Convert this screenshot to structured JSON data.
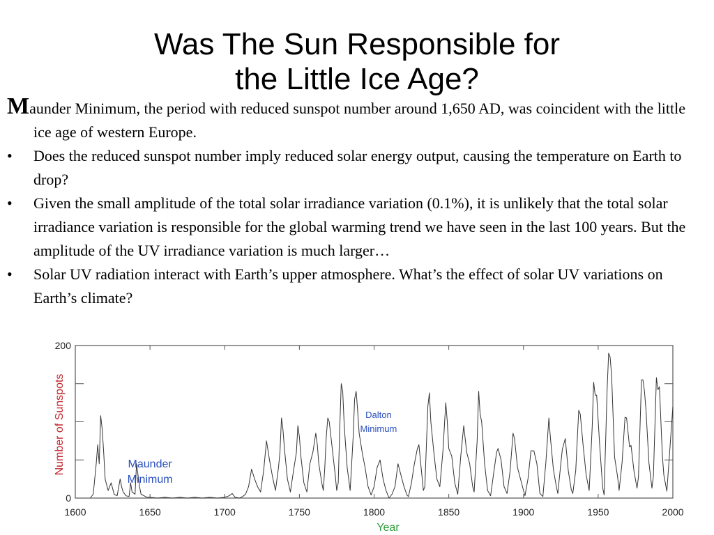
{
  "slide": {
    "title_line1": "Was The Sun Responsible for",
    "title_line2": "the Little Ice Age?",
    "intro_dropcap": "M",
    "intro_rest": "aunder Minimum, the period with reduced sunspot number around 1,650 AD, was coincident with the little ice age of western Europe.",
    "bullet_symbol": "•",
    "bullets": [
      "Does the reduced sunspot number imply reduced solar energy output, causing the temperature on Earth to drop?",
      "Given the small amplitude of the total solar irradiance variation (0.1%), it is unlikely that the total solar irradiance variation is responsible for the global warming trend we have seen in the last 100 years. But the amplitude of the UV irradiance variation is much larger…",
      "Solar UV radiation interact with Earth’s upper atmosphere. What’s the effect of solar UV variations on Earth’s climate?"
    ]
  },
  "chart_data": {
    "type": "line",
    "xlabel": "Year",
    "ylabel": "Number of Sunspots",
    "xlim": [
      1600,
      2000
    ],
    "ylim": [
      0,
      200
    ],
    "x_ticks": [
      "1600",
      "1650",
      "1700",
      "1750",
      "1800",
      "1850",
      "1900",
      "1950",
      "2000"
    ],
    "y_ticks": [
      "200",
      "0"
    ],
    "annotations": [
      {
        "line1": "Maunder",
        "line2": "Minimum",
        "year": 1650,
        "sunspots": 40
      },
      {
        "line1": "Dalton",
        "line2": "Minimum",
        "year": 1803,
        "sunspots": 105
      }
    ],
    "series": [
      {
        "points": [
          [
            1610,
            0
          ],
          [
            1612,
            5
          ],
          [
            1614,
            45
          ],
          [
            1615,
            70
          ],
          [
            1616,
            45
          ],
          [
            1617,
            108
          ],
          [
            1618,
            90
          ],
          [
            1619,
            60
          ],
          [
            1620,
            25
          ],
          [
            1622,
            10
          ],
          [
            1624,
            20
          ],
          [
            1626,
            5
          ],
          [
            1628,
            3
          ],
          [
            1630,
            25
          ],
          [
            1631,
            15
          ],
          [
            1632,
            8
          ],
          [
            1634,
            3
          ],
          [
            1636,
            2
          ],
          [
            1637,
            20
          ],
          [
            1638,
            8
          ],
          [
            1640,
            5
          ],
          [
            1641,
            45
          ],
          [
            1642,
            30
          ],
          [
            1643,
            15
          ],
          [
            1644,
            5
          ],
          [
            1646,
            3
          ],
          [
            1648,
            1
          ],
          [
            1650,
            1
          ],
          [
            1655,
            0
          ],
          [
            1660,
            1
          ],
          [
            1665,
            0
          ],
          [
            1670,
            1
          ],
          [
            1675,
            0
          ],
          [
            1680,
            1
          ],
          [
            1685,
            0
          ],
          [
            1690,
            1
          ],
          [
            1695,
            0
          ],
          [
            1700,
            1
          ],
          [
            1703,
            3
          ],
          [
            1705,
            6
          ],
          [
            1707,
            1
          ],
          [
            1710,
            0
          ],
          [
            1712,
            2
          ],
          [
            1714,
            5
          ],
          [
            1716,
            15
          ],
          [
            1718,
            38
          ],
          [
            1720,
            25
          ],
          [
            1722,
            15
          ],
          [
            1724,
            8
          ],
          [
            1726,
            35
          ],
          [
            1727,
            55
          ],
          [
            1728,
            75
          ],
          [
            1730,
            50
          ],
          [
            1732,
            28
          ],
          [
            1734,
            10
          ],
          [
            1736,
            40
          ],
          [
            1737,
            60
          ],
          [
            1738,
            105
          ],
          [
            1739,
            90
          ],
          [
            1740,
            65
          ],
          [
            1742,
            25
          ],
          [
            1744,
            8
          ],
          [
            1746,
            35
          ],
          [
            1748,
            60
          ],
          [
            1749,
            95
          ],
          [
            1750,
            80
          ],
          [
            1751,
            55
          ],
          [
            1753,
            20
          ],
          [
            1755,
            8
          ],
          [
            1757,
            45
          ],
          [
            1759,
            60
          ],
          [
            1761,
            85
          ],
          [
            1762,
            70
          ],
          [
            1763,
            45
          ],
          [
            1765,
            20
          ],
          [
            1766,
            10
          ],
          [
            1767,
            40
          ],
          [
            1768,
            80
          ],
          [
            1769,
            105
          ],
          [
            1770,
            100
          ],
          [
            1772,
            65
          ],
          [
            1774,
            30
          ],
          [
            1775,
            10
          ],
          [
            1776,
            20
          ],
          [
            1777,
            90
          ],
          [
            1778,
            150
          ],
          [
            1779,
            140
          ],
          [
            1780,
            95
          ],
          [
            1782,
            40
          ],
          [
            1784,
            10
          ],
          [
            1786,
            80
          ],
          [
            1787,
            130
          ],
          [
            1788,
            140
          ],
          [
            1789,
            115
          ],
          [
            1790,
            85
          ],
          [
            1792,
            60
          ],
          [
            1794,
            40
          ],
          [
            1796,
            15
          ],
          [
            1798,
            4
          ],
          [
            1800,
            15
          ],
          [
            1802,
            40
          ],
          [
            1804,
            50
          ],
          [
            1806,
            25
          ],
          [
            1808,
            10
          ],
          [
            1810,
            0
          ],
          [
            1812,
            5
          ],
          [
            1814,
            15
          ],
          [
            1816,
            45
          ],
          [
            1818,
            30
          ],
          [
            1820,
            15
          ],
          [
            1822,
            4
          ],
          [
            1823,
            2
          ],
          [
            1825,
            20
          ],
          [
            1827,
            45
          ],
          [
            1829,
            65
          ],
          [
            1830,
            70
          ],
          [
            1831,
            50
          ],
          [
            1833,
            10
          ],
          [
            1834,
            15
          ],
          [
            1836,
            120
          ],
          [
            1837,
            138
          ],
          [
            1838,
            100
          ],
          [
            1840,
            60
          ],
          [
            1842,
            25
          ],
          [
            1844,
            15
          ],
          [
            1846,
            60
          ],
          [
            1848,
            125
          ],
          [
            1849,
            100
          ],
          [
            1850,
            65
          ],
          [
            1852,
            55
          ],
          [
            1854,
            20
          ],
          [
            1856,
            5
          ],
          [
            1858,
            55
          ],
          [
            1860,
            95
          ],
          [
            1862,
            60
          ],
          [
            1864,
            45
          ],
          [
            1866,
            15
          ],
          [
            1867,
            8
          ],
          [
            1869,
            75
          ],
          [
            1870,
            140
          ],
          [
            1871,
            110
          ],
          [
            1872,
            100
          ],
          [
            1874,
            45
          ],
          [
            1876,
            10
          ],
          [
            1878,
            3
          ],
          [
            1880,
            32
          ],
          [
            1882,
            60
          ],
          [
            1883,
            65
          ],
          [
            1885,
            50
          ],
          [
            1887,
            15
          ],
          [
            1889,
            6
          ],
          [
            1891,
            35
          ],
          [
            1893,
            85
          ],
          [
            1894,
            78
          ],
          [
            1896,
            40
          ],
          [
            1898,
            25
          ],
          [
            1900,
            10
          ],
          [
            1901,
            3
          ],
          [
            1903,
            25
          ],
          [
            1905,
            62
          ],
          [
            1907,
            62
          ],
          [
            1909,
            45
          ],
          [
            1911,
            6
          ],
          [
            1913,
            2
          ],
          [
            1915,
            47
          ],
          [
            1917,
            105
          ],
          [
            1918,
            80
          ],
          [
            1920,
            38
          ],
          [
            1922,
            15
          ],
          [
            1923,
            6
          ],
          [
            1925,
            45
          ],
          [
            1926,
            64
          ],
          [
            1928,
            78
          ],
          [
            1930,
            36
          ],
          [
            1932,
            11
          ],
          [
            1933,
            6
          ],
          [
            1935,
            36
          ],
          [
            1937,
            115
          ],
          [
            1938,
            110
          ],
          [
            1940,
            68
          ],
          [
            1942,
            30
          ],
          [
            1944,
            10
          ],
          [
            1946,
            93
          ],
          [
            1947,
            152
          ],
          [
            1948,
            135
          ],
          [
            1949,
            135
          ],
          [
            1951,
            70
          ],
          [
            1953,
            14
          ],
          [
            1954,
            4
          ],
          [
            1956,
            142
          ],
          [
            1957,
            190
          ],
          [
            1958,
            185
          ],
          [
            1959,
            160
          ],
          [
            1961,
            54
          ],
          [
            1963,
            28
          ],
          [
            1964,
            10
          ],
          [
            1966,
            47
          ],
          [
            1968,
            106
          ],
          [
            1969,
            105
          ],
          [
            1971,
            67
          ],
          [
            1972,
            69
          ],
          [
            1974,
            35
          ],
          [
            1976,
            13
          ],
          [
            1977,
            28
          ],
          [
            1979,
            155
          ],
          [
            1980,
            155
          ],
          [
            1981,
            140
          ],
          [
            1982,
            116
          ],
          [
            1984,
            46
          ],
          [
            1986,
            13
          ],
          [
            1987,
            29
          ],
          [
            1989,
            158
          ],
          [
            1990,
            142
          ],
          [
            1991,
            146
          ],
          [
            1993,
            55
          ],
          [
            1994,
            30
          ],
          [
            1996,
            9
          ],
          [
            1998,
            64
          ],
          [
            2000,
            120
          ]
        ]
      }
    ],
    "colors": {
      "line": "#333333",
      "ylabel": "#c0272d",
      "xlabel": "#2e9a3a",
      "annotation": "#2a4fbf",
      "frame": "#555555",
      "gridline": "#cccccc"
    }
  }
}
